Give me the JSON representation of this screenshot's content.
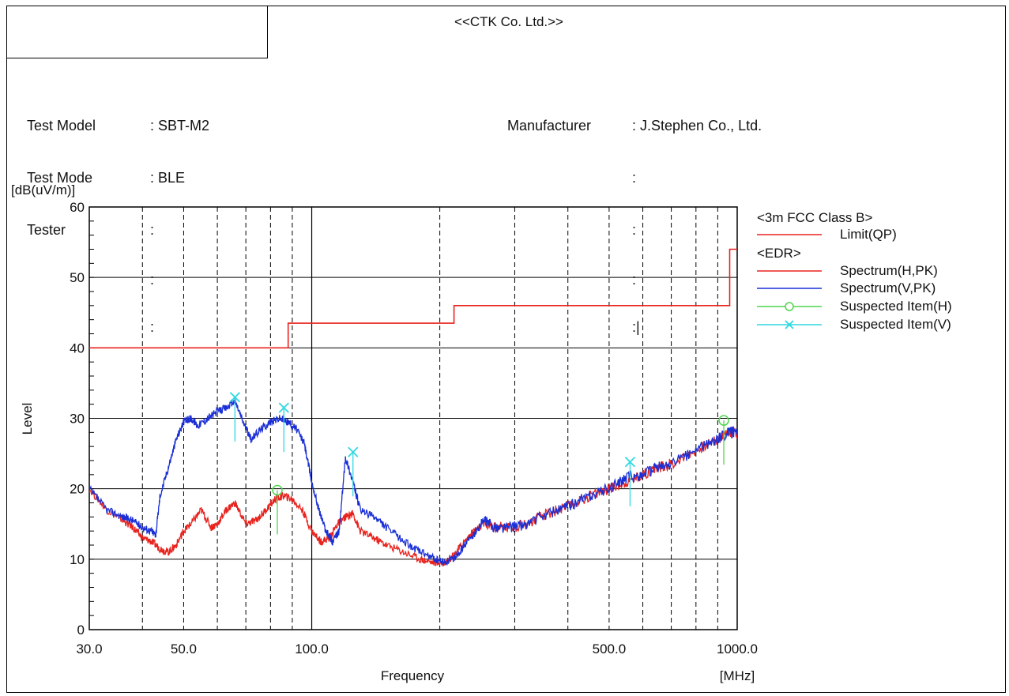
{
  "header": {
    "company": "<<CTK Co. Ltd.>>"
  },
  "info_left": {
    "labels": [
      "Test Model",
      "Test Mode",
      "Tester"
    ],
    "values": [
      ": SBT-M2",
      ": BLE",
      ":",
      ":",
      ":"
    ]
  },
  "info_right": {
    "label": "Manufacturer",
    "values": [
      ": J.Stephen Co., Ltd.",
      ":",
      ":",
      ":",
      ":|"
    ]
  },
  "chart_data": {
    "type": "line",
    "title": "",
    "xlabel": "Frequency",
    "x_unit": "[MHz]",
    "ylabel": "Level",
    "y_unit": "[dB(uV/m)]",
    "x_scale": "log",
    "xlim": [
      30,
      1000
    ],
    "ylim": [
      0,
      60
    ],
    "x_ticks": [
      30,
      50,
      100,
      500,
      1000
    ],
    "x_tick_labels": [
      "30.0",
      "50.0",
      "100.0",
      "500.0",
      "1000.0"
    ],
    "x_minor_gridlines": [
      40,
      50,
      60,
      70,
      80,
      90,
      200,
      300,
      400,
      500,
      600,
      700,
      800,
      900
    ],
    "y_ticks": [
      0,
      10,
      20,
      30,
      40,
      50,
      60
    ],
    "y_tick_labels": [
      "0",
      "10",
      "20",
      "30",
      "40",
      "50",
      "60"
    ],
    "grid": true,
    "legend_position": "right",
    "legend": [
      {
        "heading": "<3m FCC Class B>"
      },
      {
        "name": "Limit(QP)",
        "color": "#e8231e",
        "marker": "none"
      },
      {
        "heading": "<EDR>"
      },
      {
        "name": "Spectrum(H,PK)",
        "color": "#e8231e",
        "marker": "none"
      },
      {
        "name": "Spectrum(V,PK)",
        "color": "#1a2fd6",
        "marker": "none"
      },
      {
        "name": "Suspected Item(H)",
        "color": "#4fd64f",
        "marker": "circle"
      },
      {
        "name": "Suspected Item(V)",
        "color": "#2fd9e0",
        "marker": "x"
      }
    ],
    "series": [
      {
        "name": "Limit(QP)",
        "color": "#e8231e",
        "step": true,
        "x": [
          30,
          88,
          88,
          216,
          216,
          960,
          960,
          1000
        ],
        "y": [
          40,
          40,
          43.5,
          43.5,
          46,
          46,
          54,
          54
        ]
      },
      {
        "name": "Spectrum(H,PK)",
        "color": "#e8231e",
        "x": [
          30,
          33,
          36,
          38,
          40,
          42,
          44,
          46,
          48,
          50,
          52,
          55,
          58,
          60,
          63,
          66,
          70,
          74,
          78,
          82,
          86,
          90,
          95,
          100,
          105,
          110,
          115,
          120,
          125,
          130,
          140,
          150,
          165,
          180,
          195,
          205,
          215,
          225,
          240,
          255,
          270,
          290,
          320,
          360,
          400,
          450,
          500,
          550,
          600,
          650,
          700,
          800,
          900,
          950,
          1000
        ],
        "y": [
          20,
          17,
          15.5,
          14.5,
          13,
          12.5,
          11.5,
          11,
          12,
          14,
          15,
          17,
          14.5,
          15,
          17,
          18,
          15,
          15.5,
          17,
          18.5,
          19,
          18.5,
          17,
          14,
          12.5,
          13,
          15,
          16,
          16.5,
          14,
          13,
          12,
          11,
          10,
          9.5,
          9.5,
          10.5,
          12,
          14,
          15,
          14.5,
          14.5,
          15,
          16.5,
          17.5,
          19,
          20,
          21,
          22,
          23,
          23.5,
          25.5,
          27,
          28,
          28
        ]
      },
      {
        "name": "Spectrum(V,PK)",
        "color": "#1a2fd6",
        "x": [
          30,
          33,
          36,
          38,
          40,
          42,
          43,
          44,
          46,
          48,
          50,
          52,
          54,
          57,
          60,
          63,
          66,
          69,
          72,
          76,
          80,
          84,
          88,
          92,
          96,
          100,
          104,
          108,
          112,
          116,
          120,
          125,
          130,
          140,
          150,
          165,
          180,
          195,
          205,
          215,
          225,
          240,
          255,
          270,
          290,
          320,
          360,
          400,
          450,
          500,
          550,
          600,
          650,
          700,
          800,
          900,
          950,
          1000
        ],
        "y": [
          20,
          17,
          16,
          15.5,
          14.5,
          14,
          13.5,
          19,
          23,
          27,
          29.5,
          30,
          29,
          30,
          31,
          31.5,
          32.5,
          29.5,
          27,
          28.5,
          29.5,
          30,
          29.5,
          28.5,
          26.5,
          21,
          17,
          14,
          12.5,
          14,
          24.5,
          21,
          17,
          16,
          14.5,
          12.5,
          11,
          10,
          9.5,
          10,
          11.5,
          13.5,
          15.5,
          14.5,
          14.5,
          15,
          16.5,
          17.5,
          19,
          20,
          21.5,
          22,
          23,
          23.5,
          25.5,
          27,
          28,
          28
        ]
      }
    ],
    "suspected_items": [
      {
        "series": "Suspected Item(H)",
        "x": 83,
        "y": 19.8
      },
      {
        "series": "Suspected Item(H)",
        "x": 930,
        "y": 29.7
      },
      {
        "series": "Suspected Item(V)",
        "x": 66,
        "y": 33
      },
      {
        "series": "Suspected Item(V)",
        "x": 86,
        "y": 31.5
      },
      {
        "series": "Suspected Item(V)",
        "x": 125,
        "y": 25.2
      },
      {
        "series": "Suspected Item(V)",
        "x": 560,
        "y": 23.8
      }
    ]
  }
}
